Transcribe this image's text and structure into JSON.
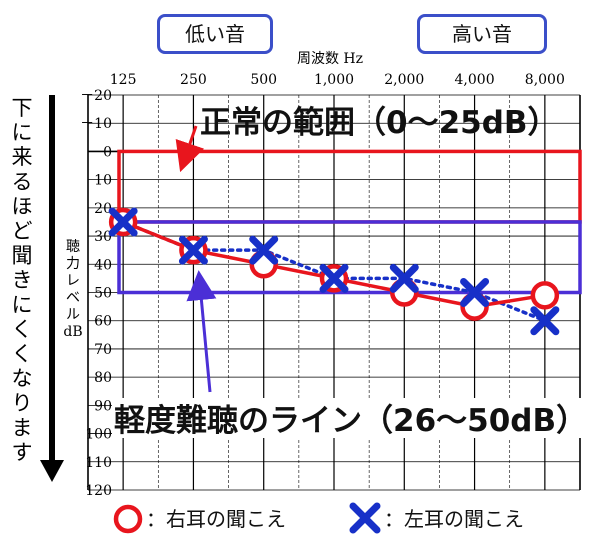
{
  "labels": {
    "low_pitch": "低い音",
    "high_pitch": "高い音",
    "freq_axis": "周波数 Hz",
    "side_note": "下に来るほど聞きにくくなります",
    "y_axis": [
      "聴",
      "力",
      "レ",
      "ベ",
      "ル",
      "dB"
    ],
    "normal_range": "正常の範囲（0〜25dB）",
    "mild_loss": "軽度難聴のライン（26〜50dB）",
    "legend_right": "：右耳の聞こえ",
    "legend_left": "：左耳の聞こえ"
  },
  "colors": {
    "right_ear": "#e8151d",
    "left_ear": "#1730c8",
    "normal_box": "#e8151d",
    "mild_box": "#4b2fd6",
    "label_border": "#3b4fc9"
  },
  "chart_data": {
    "type": "line",
    "xlabel": "周波数 Hz",
    "ylabel": "聴力レベル dB",
    "categories": [
      "125",
      "250",
      "500",
      "1,000",
      "2,000",
      "4,000",
      "8,000"
    ],
    "y_ticks": [
      "－20",
      "－10",
      "0",
      "10",
      "20",
      "30",
      "40",
      "50",
      "60",
      "70",
      "80",
      "90",
      "100",
      "110",
      "120"
    ],
    "ylim": [
      -20,
      120
    ],
    "y_inverted": true,
    "grid": true,
    "series": [
      {
        "name": "右耳の聞こえ",
        "marker": "circle",
        "line": "solid",
        "values": [
          25,
          35,
          40,
          45,
          50,
          55,
          51
        ]
      },
      {
        "name": "左耳の聞こえ",
        "marker": "cross",
        "line": "dotted",
        "values": [
          25,
          35,
          35,
          45,
          45,
          50,
          60
        ]
      }
    ],
    "bands": [
      {
        "label": "正常の範囲（0〜25dB）",
        "from": 0,
        "to": 25
      },
      {
        "label": "軽度難聴のライン（26〜50dB）",
        "from": 25,
        "to": 50
      }
    ]
  }
}
